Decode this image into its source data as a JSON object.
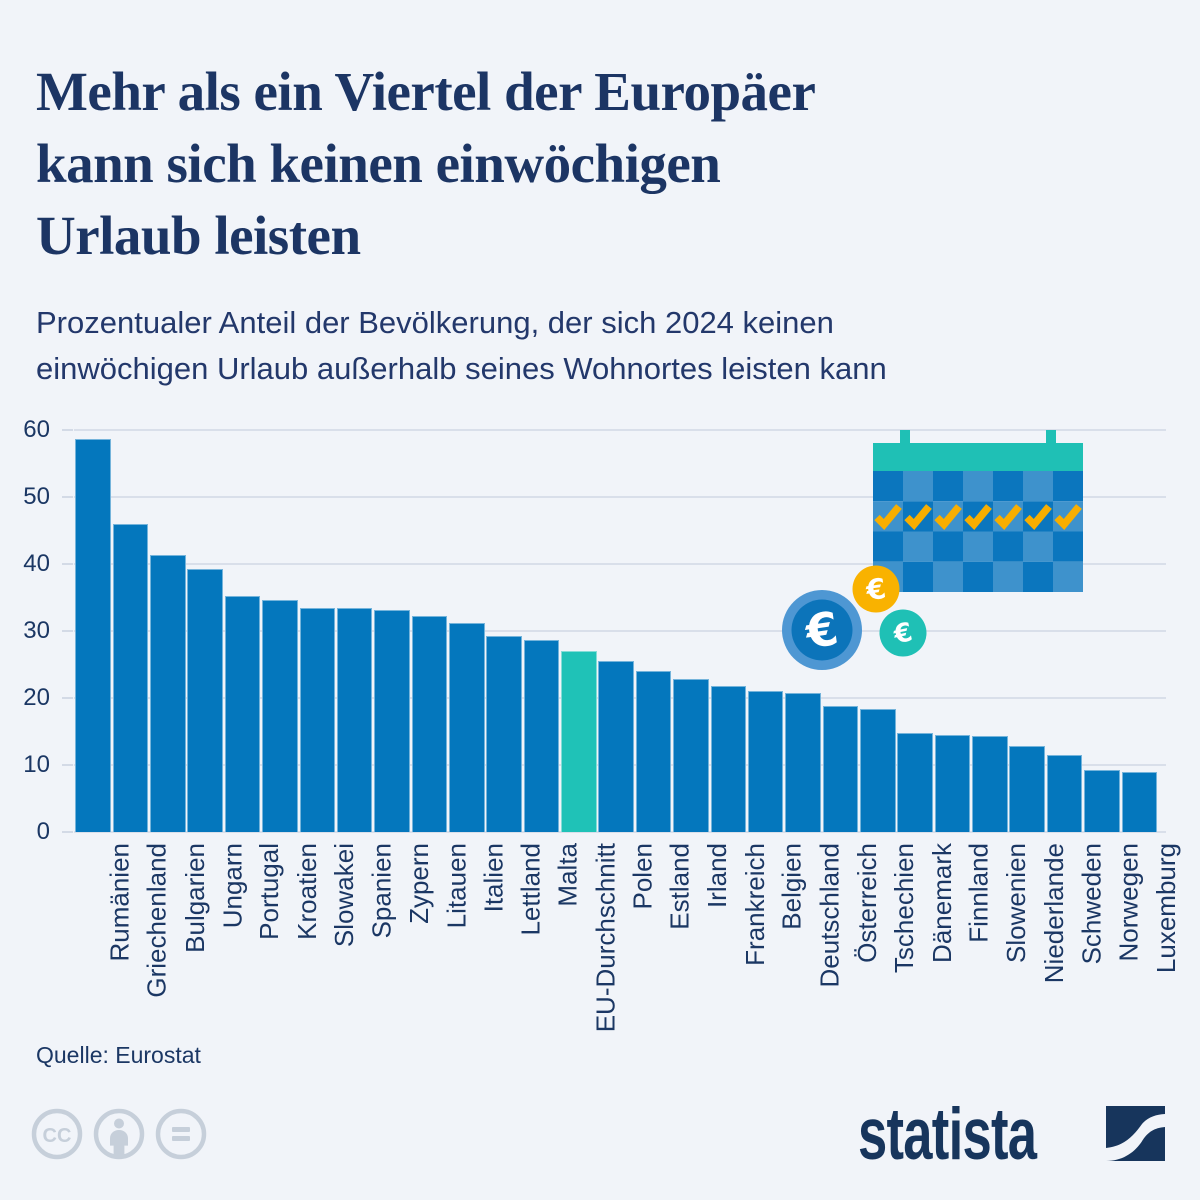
{
  "page": {
    "background": "#F1F4F9"
  },
  "header": {
    "title_lines": [
      "Mehr als ein Viertel der Europäer",
      "kann sich keinen einwöchigen",
      "Urlaub leisten"
    ],
    "subtitle_lines": [
      "Prozentualer Anteil der Bevölkerung, der sich 2024 keinen",
      "einwöchigen Urlaub außerhalb seines Wohnortes leisten kann"
    ]
  },
  "chart_data": {
    "type": "bar",
    "title": "",
    "xlabel": "",
    "ylabel": "",
    "unit": "%",
    "categories": [
      "Rumänien",
      "Griechenland",
      "Bulgarien",
      "Ungarn",
      "Portugal",
      "Kroatien",
      "Slowakei",
      "Spanien",
      "Zypern",
      "Litauen",
      "Italien",
      "Lettland",
      "Malta",
      "EU-Durchschnitt",
      "Polen",
      "Estland",
      "Irland",
      "Frankreich",
      "Belgien",
      "Deutschland",
      "Österreich",
      "Tschechien",
      "Dänemark",
      "Finnland",
      "Slowenien",
      "Niederlande",
      "Schweden",
      "Norwegen",
      "Luxemburg"
    ],
    "values": [
      58.6,
      46.0,
      41.4,
      39.2,
      35.2,
      34.7,
      33.5,
      33.4,
      33.2,
      32.2,
      31.2,
      29.2,
      28.7,
      27.0,
      25.5,
      24.1,
      22.9,
      21.8,
      21.1,
      20.7,
      18.8,
      18.4,
      14.8,
      14.5,
      14.3,
      12.8,
      11.5,
      9.2,
      8.9
    ],
    "highlight_category": "EU-Durchschnitt",
    "ylim": [
      0,
      60
    ],
    "yticks": [
      0,
      10,
      20,
      30,
      40,
      50,
      60
    ],
    "grid": true,
    "legend_position": "none",
    "colors": {
      "bar": "#0477BD",
      "highlight": "#1FC2B7",
      "gridline": "#D9DFEA",
      "axis_text": "#1B3764"
    }
  },
  "illustration": {
    "name": "vacation-calendar-with-euro-coins",
    "checkmark_count": 7,
    "euro_symbol": "€",
    "colors": {
      "calendar_header": "#1FC0B5",
      "calendar_cell_dark": "#0B76BE",
      "calendar_cell_light": "#3E92CC",
      "checkmark": "#F8AE00",
      "coin_blue_outer": "#4E97D3",
      "coin_blue_inner": "#0C74BA",
      "coin_orange": "#F9B200",
      "coin_teal": "#1FC0B5"
    }
  },
  "footer": {
    "source_label": "Quelle: Eurostat",
    "license_icons": [
      "cc-icon",
      "attribution-person-icon",
      "equals-icon"
    ],
    "brand_wordmark": "statista"
  }
}
